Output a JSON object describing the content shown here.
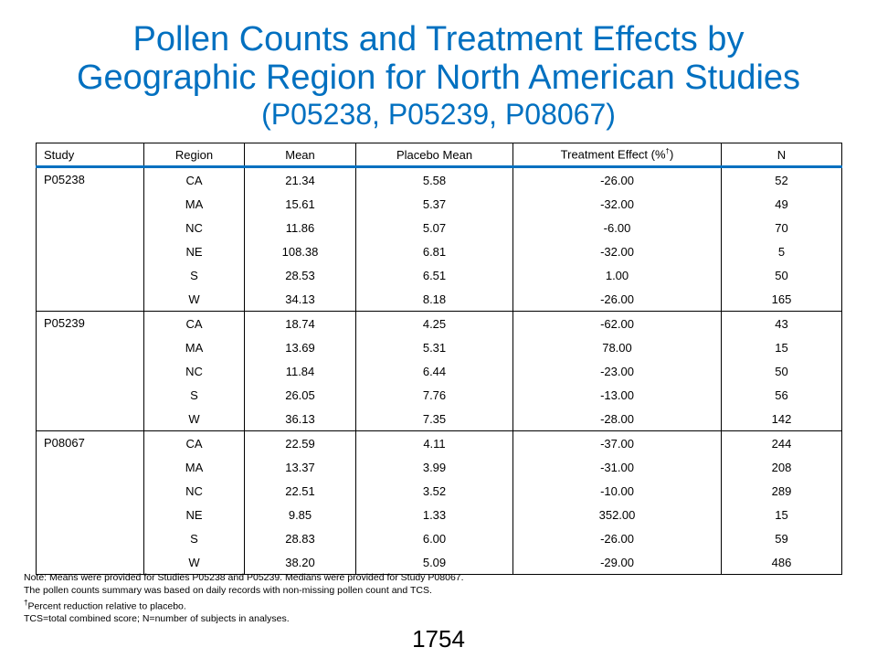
{
  "title": {
    "line1": "Pollen Counts and Treatment Effects by",
    "line2": "Geographic Region for North American Studies",
    "line3": "(P05238, P05239, P08067)"
  },
  "table": {
    "headers": {
      "study": "Study",
      "region": "Region",
      "mean": "Mean",
      "placebo_mean": "Placebo Mean",
      "treatment_effect": "Treatment  Effect (%",
      "treatment_effect_mark": "†",
      "treatment_effect_close": ")",
      "n": "N"
    },
    "groups": [
      {
        "study": "P05238",
        "rows": [
          {
            "region": "CA",
            "mean": "21.34",
            "placebo_mean": "5.58",
            "effect": "-26.00",
            "n": "52"
          },
          {
            "region": "MA",
            "mean": "15.61",
            "placebo_mean": "5.37",
            "effect": "-32.00",
            "n": "49"
          },
          {
            "region": "NC",
            "mean": "11.86",
            "placebo_mean": "5.07",
            "effect": "-6.00",
            "n": "70"
          },
          {
            "region": "NE",
            "mean": "108.38",
            "placebo_mean": "6.81",
            "effect": "-32.00",
            "n": "5"
          },
          {
            "region": "S",
            "mean": "28.53",
            "placebo_mean": "6.51",
            "effect": "1.00",
            "n": "50"
          },
          {
            "region": "W",
            "mean": "34.13",
            "placebo_mean": "8.18",
            "effect": "-26.00",
            "n": "165"
          }
        ]
      },
      {
        "study": "P05239",
        "rows": [
          {
            "region": "CA",
            "mean": "18.74",
            "placebo_mean": "4.25",
            "effect": "-62.00",
            "n": "43"
          },
          {
            "region": "MA",
            "mean": "13.69",
            "placebo_mean": "5.31",
            "effect": "78.00",
            "n": "15"
          },
          {
            "region": "NC",
            "mean": "11.84",
            "placebo_mean": "6.44",
            "effect": "-23.00",
            "n": "50"
          },
          {
            "region": "S",
            "mean": "26.05",
            "placebo_mean": "7.76",
            "effect": "-13.00",
            "n": "56"
          },
          {
            "region": "W",
            "mean": "36.13",
            "placebo_mean": "7.35",
            "effect": "-28.00",
            "n": "142"
          }
        ]
      },
      {
        "study": "P08067",
        "rows": [
          {
            "region": "CA",
            "mean": "22.59",
            "placebo_mean": "4.11",
            "effect": "-37.00",
            "n": "244"
          },
          {
            "region": "MA",
            "mean": "13.37",
            "placebo_mean": "3.99",
            "effect": "-31.00",
            "n": "208"
          },
          {
            "region": "NC",
            "mean": "22.51",
            "placebo_mean": "3.52",
            "effect": "-10.00",
            "n": "289"
          },
          {
            "region": "NE",
            "mean": "9.85",
            "placebo_mean": "1.33",
            "effect": "352.00",
            "n": "15"
          },
          {
            "region": "S",
            "mean": "28.83",
            "placebo_mean": "6.00",
            "effect": "-26.00",
            "n": "59"
          },
          {
            "region": "W",
            "mean": "38.20",
            "placebo_mean": "5.09",
            "effect": "-29.00",
            "n": "486"
          }
        ]
      }
    ]
  },
  "notes": {
    "line1": "Note: Means were provided  for Studies P05238 and P05239. Medians were provided for Study P08067.",
    "line2": "The pollen counts summary was based on daily records with non-missing pollen count and TCS.",
    "line3_mark": "†",
    "line3": "Percent reduction relative to placebo.",
    "line4": "TCS=total combined score; N=number of subjects in analyses."
  },
  "page_number": "1754",
  "colors": {
    "title": "#0070c0",
    "header_rule": "#0070c0",
    "text": "#000000",
    "background": "#ffffff"
  }
}
